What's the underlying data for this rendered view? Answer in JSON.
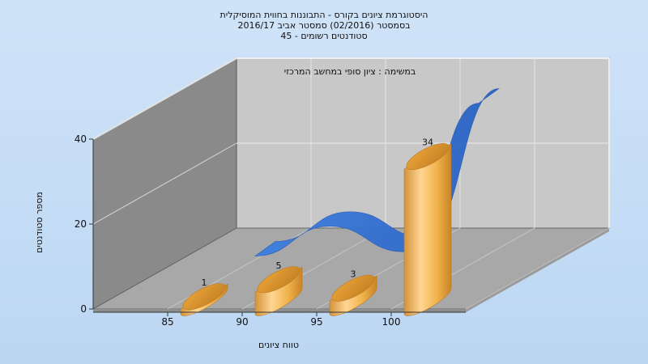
{
  "chart_data": {
    "type": "bar",
    "title_lines": [
      "היסטוגרמת ציונים בקורס - התבוננות בחווית המוסיקלית",
      "בסמסטר   (02/2016)  סמסטר אביב 2016/17",
      "סטודנטים רשומים - 45"
    ],
    "subtitle": "במשימה : ציון סופי במחשב המרכזי",
    "xlabel": "טווח ציונים",
    "ylabel": "מספר סטודנטים",
    "categories": [
      "85",
      "90",
      "95",
      "100"
    ],
    "values": [
      1,
      5,
      3,
      34
    ],
    "value_labels": [
      "1",
      "5",
      "3",
      "34"
    ],
    "yticks": [
      "0",
      "20",
      "40"
    ],
    "ylim": [
      0,
      40
    ],
    "series": [
      {
        "values": [
          1,
          5,
          3,
          34
        ],
        "color": "#f0b24a"
      },
      {
        "values": [
          2,
          9,
          3,
          38
        ],
        "color": "#2f6fd0"
      }
    ],
    "grid": true
  }
}
